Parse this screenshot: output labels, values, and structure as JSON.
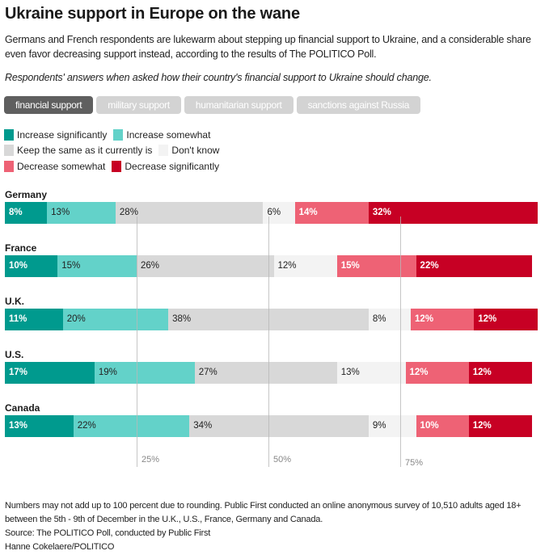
{
  "header": {
    "title": "Ukraine support in Europe on the wane",
    "subtitle": "Germans and French respondents are lukewarm about stepping up financial support to Ukraine, and a considerable share even favor decreasing support instead, according to the results of The POLITICO Poll.",
    "description": "Respondents' answers when asked how their country's financial support to Ukraine should change."
  },
  "tabs": [
    {
      "label": "financial support",
      "active": true
    },
    {
      "label": "military support",
      "active": false
    },
    {
      "label": "humanitarian support",
      "active": false
    },
    {
      "label": "sanctions against Russia",
      "active": false
    }
  ],
  "chart_data": {
    "type": "bar",
    "orientation": "horizontal-stacked",
    "unit": "%",
    "xlim": [
      0,
      100
    ],
    "gridlines": [
      25,
      50,
      75
    ],
    "gridline_labels": [
      "25%",
      "50%",
      "75%"
    ],
    "legend_position": "top-left",
    "categories": [
      "Germany",
      "France",
      "U.K.",
      "U.S.",
      "Canada"
    ],
    "series": [
      {
        "name": "Increase significantly",
        "color": "#009a8e",
        "text": "light",
        "values": [
          8,
          10,
          11,
          17,
          13
        ]
      },
      {
        "name": "Increase somewhat",
        "color": "#63d2c9",
        "text": "dark",
        "values": [
          13,
          15,
          20,
          19,
          22
        ]
      },
      {
        "name": "Keep the same as it currently is",
        "color": "#d8d8d8",
        "text": "dark",
        "values": [
          28,
          26,
          38,
          27,
          34
        ]
      },
      {
        "name": "Don't know",
        "color": "#f3f3f3",
        "text": "dark",
        "values": [
          6,
          12,
          8,
          13,
          9
        ]
      },
      {
        "name": "Decrease somewhat",
        "color": "#ee6275",
        "text": "light",
        "values": [
          14,
          15,
          12,
          12,
          10
        ]
      },
      {
        "name": "Decrease significantly",
        "color": "#c70024",
        "text": "light",
        "values": [
          32,
          22,
          12,
          12,
          12
        ]
      }
    ]
  },
  "footer": {
    "note": "Numbers may not add up to 100 percent due to rounding. Public First conducted an online anonymous survey of 10,510 adults aged 18+ between the 5th - 9th of December in the U.K., U.S., France, Germany and Canada.",
    "source": "Source: The POLITICO Poll, conducted by Public First",
    "credit": "Hanne Cokelaere/POLITICO"
  }
}
